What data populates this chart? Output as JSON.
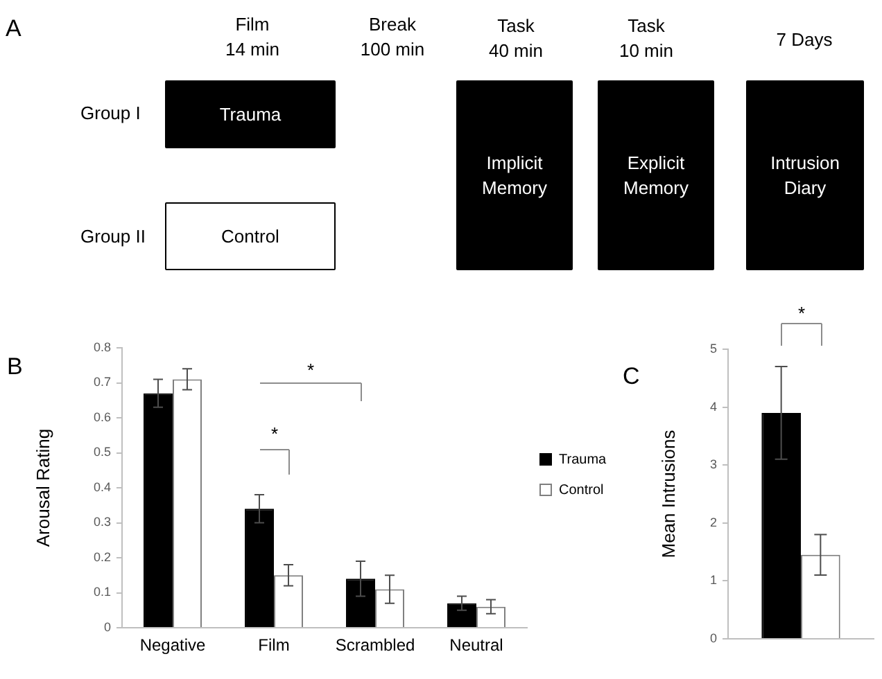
{
  "chart_data": [
    {
      "type": "other",
      "title": "A",
      "annotations": [
        "Film\n14 min",
        "Break\n100 min",
        "Task\n40 min",
        "Task\n10 min",
        "7 Days",
        "Group I",
        "Group II",
        "Trauma",
        "Control",
        "Implicit\nMemory",
        "Explicit\nMemory",
        "Intrusion\nDiary"
      ]
    },
    {
      "type": "bar",
      "title": "B",
      "categories": [
        "Negative",
        "Film",
        "Scrambled",
        "Neutral"
      ],
      "series": [
        {
          "name": "Trauma",
          "color": "#000000",
          "values": [
            0.67,
            0.34,
            0.14,
            0.07
          ],
          "errors": [
            0.04,
            0.04,
            0.05,
            0.02
          ]
        },
        {
          "name": "Control",
          "color": "#ffffff",
          "values": [
            0.71,
            0.15,
            0.11,
            0.06
          ],
          "errors": [
            0.03,
            0.03,
            0.04,
            0.02
          ]
        }
      ],
      "ylabel": "Arousal Rating",
      "ylim": [
        0,
        0.8
      ],
      "yticks": [
        0,
        0.1,
        0.2,
        0.3,
        0.4,
        0.5,
        0.6,
        0.7,
        0.8
      ],
      "grid": false,
      "legend": "right",
      "annotations": [
        "*",
        "*"
      ]
    },
    {
      "type": "bar",
      "title": "C",
      "categories": [
        null
      ],
      "series": [
        {
          "color": "#000000",
          "values": [
            3.9
          ],
          "errors": [
            0.8
          ]
        },
        {
          "color": "#ffffff",
          "values": [
            1.45
          ],
          "errors": [
            0.35
          ]
        }
      ],
      "ylabel": "Mean Intrusions",
      "ylim": [
        0,
        5
      ],
      "yticks": [
        0,
        1,
        2,
        3,
        4,
        5
      ],
      "grid": false,
      "legend": false,
      "tick_labels": "y",
      "annotations": [
        "*"
      ]
    }
  ]
}
